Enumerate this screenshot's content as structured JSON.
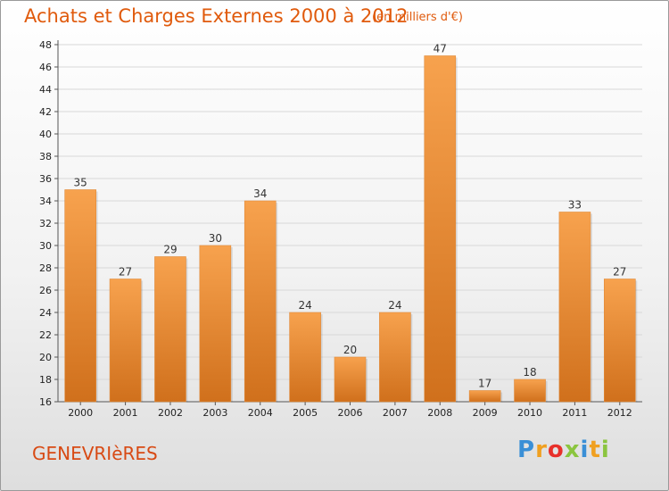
{
  "header": {
    "title": "Achats et Charges Externes 2000 à 2012",
    "subtitle": "(en milliers d'€)"
  },
  "footer": {
    "commune": "GENEVRIèRES",
    "logo_text": "Proxiti",
    "logo_colors": [
      "#3a8fd6",
      "#f0a020",
      "#e8302a",
      "#8bc53f",
      "#3a8fd6",
      "#f0a020",
      "#8bc53f"
    ]
  },
  "colors": {
    "bar_light": "#f7a24e",
    "bar_dark": "#d0701c",
    "accent": "#e05a0c",
    "grid": "#d8d8d8"
  },
  "chart_data": {
    "type": "bar",
    "title": "Achats et Charges Externes 2000 à 2012",
    "subtitle": "(en milliers d'€)",
    "categories": [
      "2000",
      "2001",
      "2002",
      "2003",
      "2004",
      "2005",
      "2006",
      "2007",
      "2008",
      "2009",
      "2010",
      "2011",
      "2012"
    ],
    "values": [
      35,
      27,
      29,
      30,
      34,
      24,
      20,
      24,
      47,
      17,
      18,
      33,
      27
    ],
    "ylim": [
      16,
      48
    ],
    "yticks": [
      16,
      18,
      20,
      22,
      24,
      26,
      28,
      30,
      32,
      34,
      36,
      38,
      40,
      42,
      44,
      46,
      48
    ],
    "grid": true,
    "legend": "none"
  }
}
